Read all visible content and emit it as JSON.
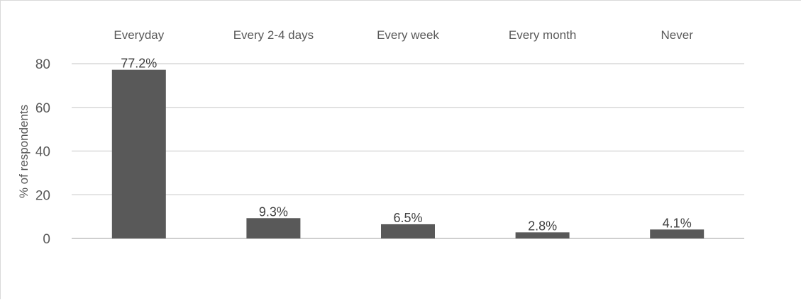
{
  "chart_data": {
    "type": "bar",
    "categories": [
      "Everyday",
      "Every 2-4 days",
      "Every week",
      "Every month",
      "Never"
    ],
    "values": [
      77.2,
      9.3,
      6.5,
      2.8,
      4.1
    ],
    "data_labels": [
      "77.2%",
      "9.3%",
      "6.5%",
      "2.8%",
      "4.1%"
    ],
    "title": "",
    "xlabel": "",
    "ylabel": "% of respondents",
    "ylim": [
      0,
      80
    ],
    "yticks": [
      "0",
      "20",
      "40",
      "60",
      "80"
    ],
    "grid": true,
    "x_axis_position": "top",
    "bar_color": "#595959"
  }
}
